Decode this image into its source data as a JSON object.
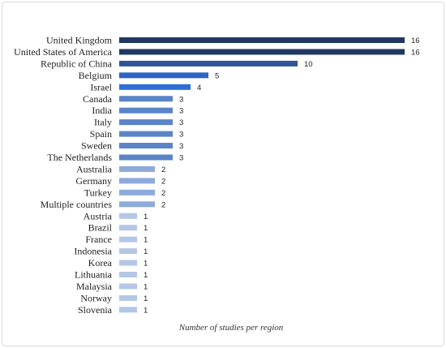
{
  "chart_data": {
    "type": "bar",
    "orientation": "horizontal",
    "categories": [
      "United Kingdom",
      "United States of America",
      "Republic of China",
      "Belgium",
      "Israel",
      "Canada",
      "India",
      "Italy",
      "Spain",
      "Sweden",
      "The Netherlands",
      "Australia",
      "Germany",
      "Turkey",
      "Multiple countries",
      "Austria",
      "Brazil",
      "France",
      "Indonesia",
      "Korea",
      "Lithuania",
      "Malaysia",
      "Norway",
      "Slovenia"
    ],
    "values": [
      16,
      16,
      10,
      5,
      4,
      3,
      3,
      3,
      3,
      3,
      3,
      2,
      2,
      2,
      2,
      1,
      1,
      1,
      1,
      1,
      1,
      1,
      1,
      1
    ],
    "value_labels": [
      "16",
      "16",
      "10",
      "5",
      "4",
      "3",
      "3",
      "3",
      "3",
      "3",
      "3",
      "2",
      "2",
      "2",
      "2",
      "1",
      "1",
      "1",
      "1",
      "1",
      "1",
      "1",
      "1",
      "1"
    ],
    "colors": [
      "#203864",
      "#203864",
      "#2f5597",
      "#2e63c6",
      "#2e6fd6",
      "#5b84c8",
      "#5b84c8",
      "#5b84c8",
      "#5b84c8",
      "#5b84c8",
      "#5b84c8",
      "#8eaadb",
      "#8eaadb",
      "#8eaadb",
      "#8eaadb",
      "#b4c7e7",
      "#b4c7e7",
      "#b4c7e7",
      "#b4c7e7",
      "#b4c7e7",
      "#b4c7e7",
      "#b4c7e7",
      "#b4c7e7",
      "#b4c7e7"
    ],
    "title": "",
    "xlabel": "Number of studies per region",
    "ylabel": "",
    "xlim": [
      0,
      16
    ],
    "grid": false,
    "legend": "none"
  }
}
